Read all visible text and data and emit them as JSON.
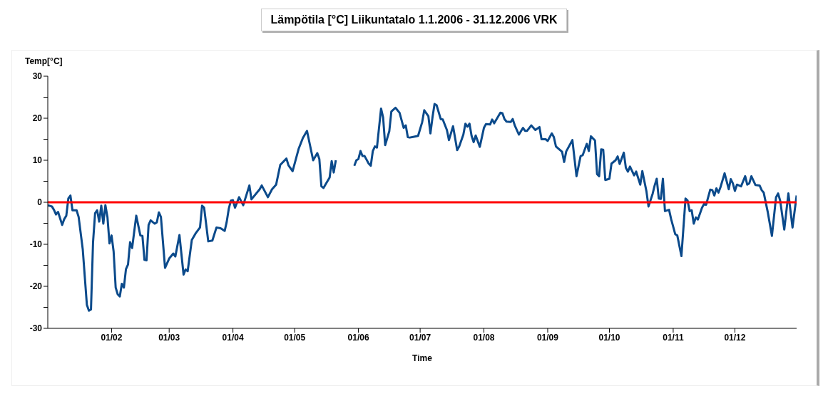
{
  "chart_data": {
    "type": "line",
    "title": "Lämpötila [°C] Liikuntatalo 1.1.2006 - 31.12.2006 VRK",
    "xlabel": "Time",
    "ylabel": "Temp[°C]",
    "x": [
      "2006-01-01",
      "2006-01-03",
      "2006-01-04",
      "2006-01-05",
      "2006-01-06",
      "2006-01-08",
      "2006-01-09",
      "2006-01-10",
      "2006-01-11",
      "2006-01-12",
      "2006-01-13",
      "2006-01-15",
      "2006-01-16",
      "2006-01-18",
      "2006-01-20",
      "2006-01-21",
      "2006-01-22",
      "2006-01-23",
      "2006-01-24",
      "2006-01-25",
      "2006-01-26",
      "2006-01-27",
      "2006-01-28",
      "2006-01-29",
      "2006-01-30",
      "2006-01-31",
      "2006-02-01",
      "2006-02-02",
      "2006-02-03",
      "2006-02-04",
      "2006-02-05",
      "2006-02-06",
      "2006-02-07",
      "2006-02-08",
      "2006-02-09",
      "2006-02-10",
      "2006-02-11",
      "2006-02-13",
      "2006-02-15",
      "2006-02-16",
      "2006-02-17",
      "2006-02-18",
      "2006-02-19",
      "2006-02-20",
      "2006-02-22",
      "2006-02-23",
      "2006-02-24",
      "2006-02-25",
      "2006-02-27",
      "2006-03-01",
      "2006-03-03",
      "2006-03-04",
      "2006-03-06",
      "2006-03-08",
      "2006-03-09",
      "2006-03-10",
      "2006-03-12",
      "2006-03-14",
      "2006-03-16",
      "2006-03-17",
      "2006-03-18",
      "2006-03-20",
      "2006-03-22",
      "2006-03-24",
      "2006-03-26",
      "2006-03-28",
      "2006-03-29",
      "2006-03-30",
      "2006-03-31",
      "2006-04-01",
      "2006-04-02",
      "2006-04-04",
      "2006-04-06",
      "2006-04-09",
      "2006-04-10",
      "2006-04-14",
      "2006-04-15",
      "2006-04-18",
      "2006-04-20",
      "2006-04-22",
      "2006-04-24",
      "2006-04-27",
      "2006-04-28",
      "2006-04-30",
      "2006-05-03",
      "2006-05-05",
      "2006-05-07",
      "2006-05-10",
      "2006-05-12",
      "2006-05-13",
      "2006-05-14",
      "2006-05-15",
      "2006-05-18",
      "2006-05-19",
      "2006-05-20",
      "2006-05-21",
      "2006-05-25",
      "2006-05-30",
      "2006-05-31",
      "2006-06-01",
      "2006-06-02",
      "2006-06-03",
      "2006-06-04",
      "2006-06-06",
      "2006-06-07",
      "2006-06-08",
      "2006-06-09",
      "2006-06-10",
      "2006-06-12",
      "2006-06-13",
      "2006-06-14",
      "2006-06-16",
      "2006-06-17",
      "2006-06-19",
      "2006-06-21",
      "2006-06-23",
      "2006-06-24",
      "2006-06-25",
      "2006-06-26",
      "2006-06-28",
      "2006-06-30",
      "2006-07-02",
      "2006-07-03",
      "2006-07-05",
      "2006-07-06",
      "2006-07-07",
      "2006-07-08",
      "2006-07-09",
      "2006-07-11",
      "2006-07-12",
      "2006-07-14",
      "2006-07-15",
      "2006-07-17",
      "2006-07-19",
      "2006-07-20",
      "2006-07-22",
      "2006-07-23",
      "2006-07-24",
      "2006-07-25",
      "2006-07-26",
      "2006-07-27",
      "2006-07-28",
      "2006-07-30",
      "2006-08-01",
      "2006-08-02",
      "2006-08-04",
      "2006-08-05",
      "2006-08-06",
      "2006-08-09",
      "2006-08-10",
      "2006-08-11",
      "2006-08-12",
      "2006-08-14",
      "2006-08-15",
      "2006-08-16",
      "2006-08-18",
      "2006-08-20",
      "2006-08-21",
      "2006-08-22",
      "2006-08-24",
      "2006-08-26",
      "2006-08-28",
      "2006-08-29",
      "2006-08-31",
      "2006-09-01",
      "2006-09-03",
      "2006-09-04",
      "2006-09-05",
      "2006-09-08",
      "2006-09-09",
      "2006-09-10",
      "2006-09-13",
      "2006-09-15",
      "2006-09-17",
      "2006-09-18",
      "2006-09-20",
      "2006-09-21",
      "2006-09-22",
      "2006-09-24",
      "2006-09-25",
      "2006-09-26",
      "2006-09-27",
      "2006-09-28",
      "2006-09-29",
      "2006-10-01",
      "2006-10-02",
      "2006-10-04",
      "2006-10-05",
      "2006-10-06",
      "2006-10-08",
      "2006-10-09",
      "2006-10-10",
      "2006-10-11",
      "2006-10-13",
      "2006-10-14",
      "2006-10-16",
      "2006-10-17",
      "2006-10-19",
      "2006-10-20",
      "2006-10-22",
      "2006-10-23",
      "2006-10-24",
      "2006-10-25",
      "2006-10-26",
      "2006-10-27",
      "2006-10-28",
      "2006-10-30",
      "2006-10-31",
      "2006-11-02",
      "2006-11-03",
      "2006-11-05",
      "2006-11-07",
      "2006-11-08",
      "2006-11-09",
      "2006-11-10",
      "2006-11-11",
      "2006-11-12",
      "2006-11-13",
      "2006-11-15",
      "2006-11-16",
      "2006-11-17",
      "2006-11-19",
      "2006-11-20",
      "2006-11-21",
      "2006-11-22",
      "2006-11-23",
      "2006-11-24",
      "2006-11-26",
      "2006-11-28",
      "2006-11-29",
      "2006-11-30",
      "2006-12-01",
      "2006-12-02",
      "2006-12-04",
      "2006-12-06",
      "2006-12-07",
      "2006-12-08",
      "2006-12-09",
      "2006-12-11",
      "2006-12-13",
      "2006-12-14",
      "2006-12-15",
      "2006-12-17",
      "2006-12-19",
      "2006-12-21",
      "2006-12-22",
      "2006-12-23",
      "2006-12-25",
      "2006-12-27",
      "2006-12-29",
      "2006-12-31"
    ],
    "series": [
      {
        "color": "#0b4a8b",
        "values": [
          -0.7,
          -1,
          -1.8,
          -2.9,
          -2.3,
          -5.4,
          -4,
          -3.2,
          0.9,
          1.6,
          -1.9,
          -1.9,
          -3.5,
          -11.2,
          -24.4,
          -25.8,
          -25.5,
          -9.5,
          -2.6,
          -1.9,
          -4.6,
          -0.8,
          -5.1,
          -0.7,
          -3.5,
          -9.8,
          -7.9,
          -11.7,
          -20.3,
          -21.9,
          -22.4,
          -19.4,
          -20.3,
          -15.9,
          -14.8,
          -9.5,
          -10.9,
          -3.2,
          -7.9,
          -8,
          -13.7,
          -13.8,
          -5.4,
          -4.3,
          -5.1,
          -4.8,
          -2.4,
          -3.5,
          -15.6,
          -13.4,
          -12.2,
          -12.9,
          -7.8,
          -17.2,
          -16,
          -16.4,
          -9,
          -7.3,
          -6,
          -0.8,
          -1.3,
          -9.3,
          -9.1,
          -6,
          -6.2,
          -6.8,
          -4.6,
          -1.5,
          0.4,
          0.5,
          -1.3,
          1.2,
          -0.7,
          4,
          0.7,
          3.1,
          4,
          1.2,
          3.1,
          4.2,
          8.9,
          10.4,
          8.8,
          7.4,
          12.8,
          15.3,
          17,
          10,
          11.7,
          10.3,
          3.8,
          3.4,
          5.9,
          9.8,
          7.1,
          10,
          null,
          8.7,
          10,
          10.3,
          12.2,
          11,
          11,
          9.2,
          8.7,
          12.2,
          13.3,
          13,
          22.3,
          20.2,
          13.6,
          16.9,
          21.6,
          22.5,
          21.3,
          17.7,
          18.3,
          15.5,
          15.4,
          15.6,
          15.8,
          19.1,
          21.9,
          20.5,
          16.4,
          20.2,
          23.4,
          23.1,
          19.8,
          19.7,
          17.2,
          14.8,
          18.1,
          12.4,
          13.3,
          16.1,
          18.7,
          18,
          18.7,
          15.8,
          14.3,
          15.9,
          13.2,
          17.7,
          18.6,
          18.5,
          19.7,
          18.8,
          21.3,
          21.2,
          19.8,
          19.2,
          19.1,
          19.8,
          18.3,
          16.1,
          17.7,
          17,
          17,
          18.3,
          17.2,
          17.9,
          15,
          15,
          14.6,
          16.4,
          15.5,
          13.3,
          12,
          9.6,
          12.1,
          14.8,
          6.2,
          11,
          11.2,
          13.9,
          12.2,
          15.7,
          14.7,
          6.7,
          6.2,
          12.6,
          12.5,
          5.3,
          5.6,
          9.2,
          10,
          10.9,
          9.1,
          11.8,
          8.2,
          7.3,
          8.5,
          6.4,
          7.3,
          4.2,
          7.4,
          2.6,
          -1,
          2,
          4,
          5.6,
          0.9,
          0.8,
          5.6,
          -2.1,
          -1.8,
          -4,
          -7.6,
          -7.9,
          -12.8,
          0.9,
          0.4,
          -2.1,
          -1.9,
          -5.1,
          -3.6,
          -4.1,
          -1.3,
          -0.4,
          -0.6,
          3,
          2.9,
          1.6,
          3.3,
          2.3,
          3.6,
          6.9,
          3.1,
          5.5,
          4.5,
          2.7,
          4.2,
          3.8,
          6.2,
          4.2,
          4.5,
          6.2,
          4.1,
          4,
          2.9,
          2.3,
          -2.4,
          -8,
          1.2,
          2.1,
          0.4,
          -6.5,
          2.1,
          -6,
          1.6
        ]
      }
    ],
    "xlim": [
      "2006-01-01",
      "2006-12-31"
    ],
    "xticks": [
      {
        "value": "2006-02-01",
        "label": "01/02"
      },
      {
        "value": "2006-03-01",
        "label": "01/03"
      },
      {
        "value": "2006-04-01",
        "label": "01/04"
      },
      {
        "value": "2006-05-01",
        "label": "01/05"
      },
      {
        "value": "2006-06-01",
        "label": "01/06"
      },
      {
        "value": "2006-07-01",
        "label": "01/07"
      },
      {
        "value": "2006-08-01",
        "label": "01/08"
      },
      {
        "value": "2006-09-01",
        "label": "01/09"
      },
      {
        "value": "2006-10-01",
        "label": "01/10"
      },
      {
        "value": "2006-11-01",
        "label": "01/11"
      },
      {
        "value": "2006-12-01",
        "label": "01/12"
      }
    ],
    "ylim": [
      -30,
      30
    ],
    "yticks": [
      -30,
      {
        "value": -25,
        "label": null
      },
      -20,
      {
        "value": -15,
        "label": null
      },
      -10,
      {
        "value": -5,
        "label": null
      },
      0,
      {
        "value": 5,
        "label": null
      },
      10,
      {
        "value": 15,
        "label": null
      },
      20,
      {
        "value": 25,
        "label": null
      },
      30
    ],
    "ref_lines": [
      {
        "axis": "y",
        "value": 0,
        "color": "#ff0000"
      }
    ],
    "grid": false,
    "legend": false
  }
}
